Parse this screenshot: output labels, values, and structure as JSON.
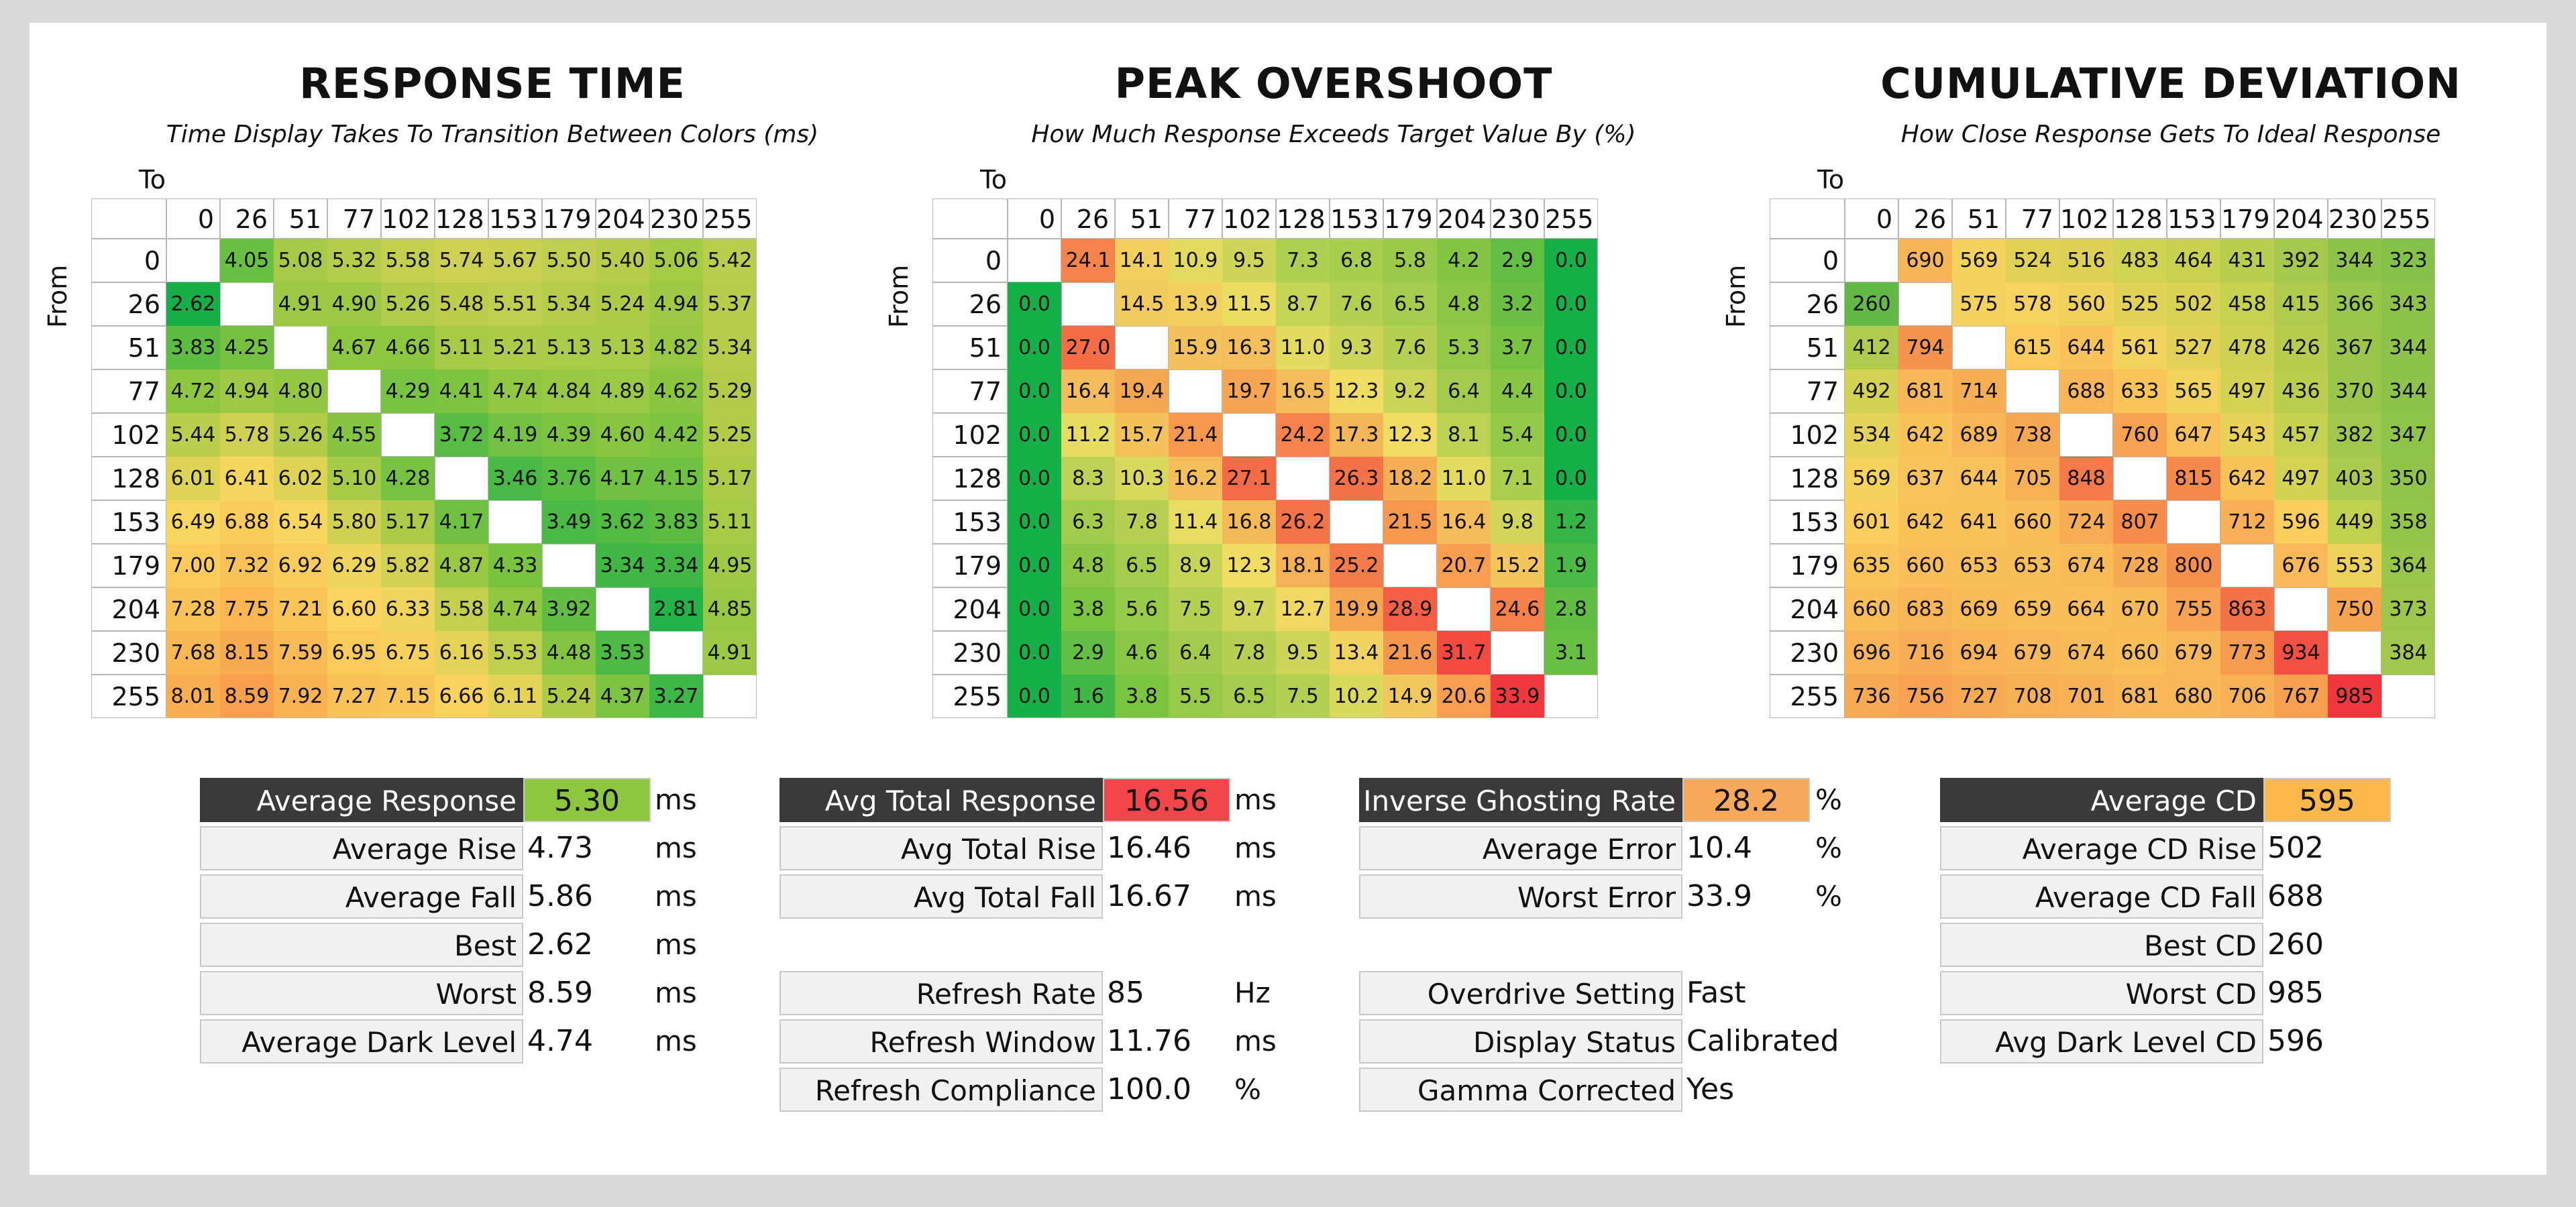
{
  "chart_data": [
    {
      "type": "heatmap",
      "title": "RESPONSE TIME",
      "subtitle": "Time Display Takes To Transition Between Colors (ms)",
      "xlabel": "To",
      "ylabel": "From",
      "x": [
        "0",
        "26",
        "51",
        "77",
        "102",
        "128",
        "153",
        "179",
        "204",
        "230",
        "255"
      ],
      "y": [
        "0",
        "26",
        "51",
        "77",
        "102",
        "128",
        "153",
        "179",
        "204",
        "230",
        "255"
      ],
      "values": [
        [
          null,
          "4.05",
          "5.08",
          "5.32",
          "5.58",
          "5.74",
          "5.67",
          "5.50",
          "5.40",
          "5.06",
          "5.42"
        ],
        [
          "2.62",
          null,
          "4.91",
          "4.90",
          "5.26",
          "5.48",
          "5.51",
          "5.34",
          "5.24",
          "4.94",
          "5.37"
        ],
        [
          "3.83",
          "4.25",
          null,
          "4.67",
          "4.66",
          "5.11",
          "5.21",
          "5.13",
          "5.13",
          "4.82",
          "5.34"
        ],
        [
          "4.72",
          "4.94",
          "4.80",
          null,
          "4.29",
          "4.41",
          "4.74",
          "4.84",
          "4.89",
          "4.62",
          "5.29"
        ],
        [
          "5.44",
          "5.78",
          "5.26",
          "4.55",
          null,
          "3.72",
          "4.19",
          "4.39",
          "4.60",
          "4.42",
          "5.25"
        ],
        [
          "6.01",
          "6.41",
          "6.02",
          "5.10",
          "4.28",
          null,
          "3.46",
          "3.76",
          "4.17",
          "4.15",
          "5.17"
        ],
        [
          "6.49",
          "6.88",
          "6.54",
          "5.80",
          "5.17",
          "4.17",
          null,
          "3.49",
          "3.62",
          "3.83",
          "5.11"
        ],
        [
          "7.00",
          "7.32",
          "6.92",
          "6.29",
          "5.82",
          "4.87",
          "4.33",
          null,
          "3.34",
          "3.34",
          "4.95"
        ],
        [
          "7.28",
          "7.75",
          "7.21",
          "6.60",
          "6.33",
          "5.58",
          "4.74",
          "3.92",
          null,
          "2.81",
          "4.85"
        ],
        [
          "7.68",
          "8.15",
          "7.59",
          "6.95",
          "6.75",
          "6.16",
          "5.53",
          "4.48",
          "3.53",
          null,
          "4.91"
        ],
        [
          "8.01",
          "8.59",
          "7.92",
          "7.27",
          "7.15",
          "6.66",
          "6.11",
          "5.24",
          "4.37",
          "3.27",
          null
        ]
      ]
    },
    {
      "type": "heatmap",
      "title": "PEAK OVERSHOOT",
      "subtitle": "How Much Response Exceeds Target Value By (%)",
      "xlabel": "To",
      "ylabel": "From",
      "x": [
        "0",
        "26",
        "51",
        "77",
        "102",
        "128",
        "153",
        "179",
        "204",
        "230",
        "255"
      ],
      "y": [
        "0",
        "26",
        "51",
        "77",
        "102",
        "128",
        "153",
        "179",
        "204",
        "230",
        "255"
      ],
      "values": [
        [
          null,
          "24.1",
          "14.1",
          "10.9",
          "9.5",
          "7.3",
          "6.8",
          "5.8",
          "4.2",
          "2.9",
          "0.0"
        ],
        [
          "0.0",
          null,
          "14.5",
          "13.9",
          "11.5",
          "8.7",
          "7.6",
          "6.5",
          "4.8",
          "3.2",
          "0.0"
        ],
        [
          "0.0",
          "27.0",
          null,
          "15.9",
          "16.3",
          "11.0",
          "9.3",
          "7.6",
          "5.3",
          "3.7",
          "0.0"
        ],
        [
          "0.0",
          "16.4",
          "19.4",
          null,
          "19.7",
          "16.5",
          "12.3",
          "9.2",
          "6.4",
          "4.4",
          "0.0"
        ],
        [
          "0.0",
          "11.2",
          "15.7",
          "21.4",
          null,
          "24.2",
          "17.3",
          "12.3",
          "8.1",
          "5.4",
          "0.0"
        ],
        [
          "0.0",
          "8.3",
          "10.3",
          "16.2",
          "27.1",
          null,
          "26.3",
          "18.2",
          "11.0",
          "7.1",
          "0.0"
        ],
        [
          "0.0",
          "6.3",
          "7.8",
          "11.4",
          "16.8",
          "26.2",
          null,
          "21.5",
          "16.4",
          "9.8",
          "1.2"
        ],
        [
          "0.0",
          "4.8",
          "6.5",
          "8.9",
          "12.3",
          "18.1",
          "25.2",
          null,
          "20.7",
          "15.2",
          "1.9"
        ],
        [
          "0.0",
          "3.8",
          "5.6",
          "7.5",
          "9.7",
          "12.7",
          "19.9",
          "28.9",
          null,
          "24.6",
          "2.8"
        ],
        [
          "0.0",
          "2.9",
          "4.6",
          "6.4",
          "7.8",
          "9.5",
          "13.4",
          "21.6",
          "31.7",
          null,
          "3.1"
        ],
        [
          "0.0",
          "1.6",
          "3.8",
          "5.5",
          "6.5",
          "7.5",
          "10.2",
          "14.9",
          "20.6",
          "33.9",
          null
        ]
      ]
    },
    {
      "type": "heatmap",
      "title": "CUMULATIVE DEVIATION",
      "subtitle": "How Close Response Gets To Ideal Response",
      "xlabel": "To",
      "ylabel": "From",
      "x": [
        "0",
        "26",
        "51",
        "77",
        "102",
        "128",
        "153",
        "179",
        "204",
        "230",
        "255"
      ],
      "y": [
        "0",
        "26",
        "51",
        "77",
        "102",
        "128",
        "153",
        "179",
        "204",
        "230",
        "255"
      ],
      "values": [
        [
          null,
          "690",
          "569",
          "524",
          "516",
          "483",
          "464",
          "431",
          "392",
          "344",
          "323"
        ],
        [
          "260",
          null,
          "575",
          "578",
          "560",
          "525",
          "502",
          "458",
          "415",
          "366",
          "343"
        ],
        [
          "412",
          "794",
          null,
          "615",
          "644",
          "561",
          "527",
          "478",
          "426",
          "367",
          "344"
        ],
        [
          "492",
          "681",
          "714",
          null,
          "688",
          "633",
          "565",
          "497",
          "436",
          "370",
          "344"
        ],
        [
          "534",
          "642",
          "689",
          "738",
          null,
          "760",
          "647",
          "543",
          "457",
          "382",
          "347"
        ],
        [
          "569",
          "637",
          "644",
          "705",
          "848",
          null,
          "815",
          "642",
          "497",
          "403",
          "350"
        ],
        [
          "601",
          "642",
          "641",
          "660",
          "724",
          "807",
          null,
          "712",
          "596",
          "449",
          "358"
        ],
        [
          "635",
          "660",
          "653",
          "653",
          "674",
          "728",
          "800",
          null,
          "676",
          "553",
          "364"
        ],
        [
          "660",
          "683",
          "669",
          "659",
          "664",
          "670",
          "755",
          "863",
          null,
          "750",
          "373"
        ],
        [
          "696",
          "716",
          "694",
          "679",
          "674",
          "660",
          "679",
          "773",
          "934",
          null,
          "384"
        ],
        [
          "736",
          "756",
          "727",
          "708",
          "701",
          "681",
          "680",
          "706",
          "767",
          "985",
          null
        ]
      ]
    }
  ],
  "stats": {
    "response": [
      {
        "label": "Average Response",
        "value": "5.30",
        "unit": "ms",
        "highlight": "#8dc63f"
      },
      {
        "label": "Average Rise",
        "value": "4.73",
        "unit": "ms"
      },
      {
        "label": "Average Fall",
        "value": "5.86",
        "unit": "ms"
      },
      {
        "label": "Best",
        "value": "2.62",
        "unit": "ms"
      },
      {
        "label": "Worst",
        "value": "8.59",
        "unit": "ms"
      },
      {
        "label": "Average Dark Level",
        "value": "4.74",
        "unit": "ms"
      }
    ],
    "total": [
      {
        "label": "Avg Total Response",
        "value": "16.56",
        "unit": "ms",
        "highlight": "#f2464a"
      },
      {
        "label": "Avg Total Rise",
        "value": "16.46",
        "unit": "ms"
      },
      {
        "label": "Avg Total Fall",
        "value": "16.67",
        "unit": "ms"
      }
    ],
    "refresh": [
      {
        "label": "Refresh Rate",
        "value": "85",
        "unit": "Hz"
      },
      {
        "label": "Refresh Window",
        "value": "11.76",
        "unit": "ms"
      },
      {
        "label": "Refresh Compliance",
        "value": "100.0",
        "unit": "%"
      }
    ],
    "ghosting": [
      {
        "label": "Inverse Ghosting Rate",
        "value": "28.2",
        "unit": "%",
        "highlight": "#f7a85a"
      },
      {
        "label": "Average Error",
        "value": "10.4",
        "unit": "%"
      },
      {
        "label": "Worst Error",
        "value": "33.9",
        "unit": "%"
      }
    ],
    "settings": [
      {
        "label": "Overdrive Setting",
        "value": "Fast"
      },
      {
        "label": "Display Status",
        "value": "Calibrated"
      },
      {
        "label": "Gamma Corrected",
        "value": "Yes"
      }
    ],
    "cd": [
      {
        "label": "Average CD",
        "value": "595",
        "highlight": "#fbb849"
      },
      {
        "label": "Average CD Rise",
        "value": "502"
      },
      {
        "label": "Average CD Fall",
        "value": "688"
      },
      {
        "label": "Best CD",
        "value": "260"
      },
      {
        "label": "Worst CD",
        "value": "985"
      },
      {
        "label": "Avg Dark Level CD",
        "value": "596"
      }
    ]
  }
}
